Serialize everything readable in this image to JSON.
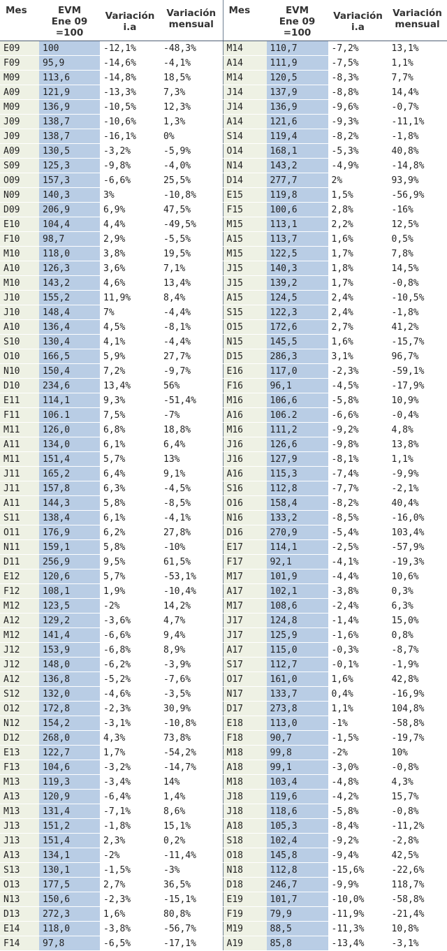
{
  "headers": {
    "mes": "Mes",
    "evm_line1": "EVM",
    "evm_line2": "Ene 09",
    "evm_line3": "=100",
    "ia_line1": "Variación",
    "ia_line2": "i.a",
    "mm_line1": "Variación",
    "mm_line2": "mensual"
  },
  "colors": {
    "mes_column": "#eef1e4",
    "evm_column": "#b9cde5",
    "header_rule": "#4e5e73"
  },
  "left_rows": [
    [
      "E09",
      "100",
      "-12,1%",
      "-48,3%"
    ],
    [
      "F09",
      "95,9",
      "-14,6%",
      "-4,1%"
    ],
    [
      "M09",
      "113,6",
      "-14,8%",
      "18,5%"
    ],
    [
      "A09",
      "121,9",
      "-13,3%",
      "7,3%"
    ],
    [
      "M09",
      "136,9",
      "-10,5%",
      "12,3%"
    ],
    [
      "J09",
      "138,7",
      "-10,6%",
      "1,3%"
    ],
    [
      "J09",
      "138,7",
      "-16,1%",
      "0%"
    ],
    [
      "A09",
      "130,5",
      "-3,2%",
      "-5,9%"
    ],
    [
      "S09",
      "125,3",
      "-9,8%",
      "-4,0%"
    ],
    [
      "O09",
      "157,3",
      "-6,6%",
      "25,5%"
    ],
    [
      "N09",
      "140,3",
      "3%",
      "-10,8%"
    ],
    [
      "D09",
      "206,9",
      "6,9%",
      "47,5%"
    ],
    [
      "E10",
      "104,4",
      "4,4%",
      "-49,5%"
    ],
    [
      "F10",
      "98,7",
      "2,9%",
      "-5,5%"
    ],
    [
      "M10",
      "118,0",
      "3,8%",
      "19,5%"
    ],
    [
      "A10",
      "126,3",
      "3,6%",
      "7,1%"
    ],
    [
      "M10",
      "143,2",
      "4,6%",
      "13,4%"
    ],
    [
      "J10",
      "155,2",
      "11,9%",
      "8,4%"
    ],
    [
      "J10",
      "148,4",
      "7%",
      "-4,4%"
    ],
    [
      "A10",
      "136,4",
      "4,5%",
      "-8,1%"
    ],
    [
      "S10",
      "130,4",
      "4,1%",
      "-4,4%"
    ],
    [
      "O10",
      "166,5",
      "5,9%",
      "27,7%"
    ],
    [
      "N10",
      "150,4",
      "7,2%",
      "-9,7%"
    ],
    [
      "D10",
      "234,6",
      "13,4%",
      "56%"
    ],
    [
      "E11",
      "114,1",
      "9,3%",
      "-51,4%"
    ],
    [
      "F11",
      "106.1",
      "7,5%",
      "-7%"
    ],
    [
      "M11",
      "126,0",
      "6,8%",
      "18,8%"
    ],
    [
      "A11",
      "134,0",
      "6,1%",
      "6,4%"
    ],
    [
      "M11",
      "151,4",
      "5,7%",
      "13%"
    ],
    [
      "J11",
      "165,2",
      "6,4%",
      "9,1%"
    ],
    [
      "J11",
      "157,8",
      "6,3%",
      "-4,5%"
    ],
    [
      "A11",
      "144,3",
      "5,8%",
      "-8,5%"
    ],
    [
      "S11",
      "138,4",
      "6,1%",
      "-4,1%"
    ],
    [
      "O11",
      "176,9",
      "6,2%",
      "27,8%"
    ],
    [
      "N11",
      "159,1",
      "5,8%",
      "-10%"
    ],
    [
      "D11",
      "256,9",
      "9,5%",
      "61,5%"
    ],
    [
      "E12",
      "120,6",
      "5,7%",
      "-53,1%"
    ],
    [
      "F12",
      "108,1",
      "1,9%",
      "-10,4%"
    ],
    [
      "M12",
      "123,5",
      "-2%",
      "14,2%"
    ],
    [
      "A12",
      "129,2",
      "-3,6%",
      "4,7%"
    ],
    [
      "M12",
      "141,4",
      "-6,6%",
      "9,4%"
    ],
    [
      "J12",
      "153,9",
      "-6,8%",
      "8,9%"
    ],
    [
      "J12",
      "148,0",
      "-6,2%",
      "-3,9%"
    ],
    [
      "A12",
      "136,8",
      "-5,2%",
      "-7,6%"
    ],
    [
      "S12",
      "132,0",
      "-4,6%",
      "-3,5%"
    ],
    [
      "O12",
      "172,8",
      "-2,3%",
      "30,9%"
    ],
    [
      "N12",
      "154,2",
      "-3,1%",
      "-10,8%"
    ],
    [
      "D12",
      "268,0",
      "4,3%",
      "73,8%"
    ],
    [
      "E13",
      "122,7",
      "1,7%",
      "-54,2%"
    ],
    [
      "F13",
      "104,6",
      "-3,2%",
      "-14,7%"
    ],
    [
      "M13",
      "119,3",
      "-3,4%",
      "14%"
    ],
    [
      "A13",
      "120,9",
      "-6,4%",
      "1,4%"
    ],
    [
      "M13",
      "131,4",
      "-7,1%",
      "8,6%"
    ],
    [
      "J13",
      "151,2",
      "-1,8%",
      "15,1%"
    ],
    [
      "J13",
      "151,4",
      "2,3%",
      "0,2%"
    ],
    [
      "A13",
      "134,1",
      "-2%",
      "-11,4%"
    ],
    [
      "S13",
      "130,1",
      "-1,5%",
      "-3%"
    ],
    [
      "O13",
      "177,5",
      "2,7%",
      "36,5%"
    ],
    [
      "N13",
      "150,6",
      "-2,3%",
      "-15,1%"
    ],
    [
      "D13",
      "272,3",
      "1,6%",
      "80,8%"
    ],
    [
      "E14",
      "118,0",
      "-3,8%",
      "-56,7%"
    ],
    [
      "F14",
      "97,8",
      "-6,5%",
      "-17,1%"
    ]
  ],
  "right_rows": [
    [
      "M14",
      "110,7",
      "-7,2%",
      "13,1%"
    ],
    [
      "A14",
      "111,9",
      "-7,5%",
      "1,1%"
    ],
    [
      "M14",
      "120,5",
      "-8,3%",
      "7,7%"
    ],
    [
      "J14",
      "137,9",
      "-8,8%",
      "14,4%"
    ],
    [
      "J14",
      "136,9",
      "-9,6%",
      "-0,7%"
    ],
    [
      "A14",
      "121,6",
      "-9,3%",
      "-11,1%"
    ],
    [
      "S14",
      "119,4",
      "-8,2%",
      "-1,8%"
    ],
    [
      "O14",
      "168,1",
      "-5,3%",
      "40,8%"
    ],
    [
      "N14",
      "143,2",
      "-4,9%",
      "-14,8%"
    ],
    [
      "D14",
      "277,7",
      "2%",
      "93,9%"
    ],
    [
      "E15",
      "119,8",
      "1,5%",
      "-56,9%"
    ],
    [
      "F15",
      "100,6",
      "2,8%",
      "-16%"
    ],
    [
      "M15",
      "113,1",
      "2,2%",
      "12,5%"
    ],
    [
      "A15",
      "113,7",
      "1,6%",
      "0,5%"
    ],
    [
      "M15",
      "122,5",
      "1,7%",
      "7,8%"
    ],
    [
      "J15",
      "140,3",
      "1,8%",
      "14,5%"
    ],
    [
      "J15",
      "139,2",
      "1,7%",
      "-0,8%"
    ],
    [
      "A15",
      "124,5",
      "2,4%",
      "-10,5%"
    ],
    [
      "S15",
      "122,3",
      "2,4%",
      "-1,8%"
    ],
    [
      "O15",
      "172,6",
      "2,7%",
      "41,2%"
    ],
    [
      "N15",
      "145,5",
      "1,6%",
      "-15,7%"
    ],
    [
      "D15",
      "286,3",
      "3,1%",
      "96,7%"
    ],
    [
      "E16",
      "117,0",
      "-2,3%",
      "-59,1%"
    ],
    [
      "F16",
      "96,1",
      "-4,5%",
      "-17,9%"
    ],
    [
      "M16",
      "106,6",
      "-5,8%",
      "10,9%"
    ],
    [
      "A16",
      "106.2",
      "-6,6%",
      "-0,4%"
    ],
    [
      "M16",
      "111,2",
      "-9,2%",
      "4,8%"
    ],
    [
      "J16",
      "126,6",
      "-9,8%",
      "13,8%"
    ],
    [
      "J16",
      "127,9",
      "-8,1%",
      "1,1%"
    ],
    [
      "A16",
      "115,3",
      "-7,4%",
      "-9,9%"
    ],
    [
      "S16",
      "112,8",
      "-7,7%",
      "-2,1%"
    ],
    [
      "O16",
      "158,4",
      "-8,2%",
      "40,4%"
    ],
    [
      "N16",
      "133,2",
      "-8,5%",
      "-16,0%"
    ],
    [
      "D16",
      "270,9",
      "-5,4%",
      "103,4%"
    ],
    [
      "E17",
      "114,1",
      "-2,5%",
      "-57,9%"
    ],
    [
      "F17",
      "92,1",
      "-4,1%",
      "-19,3%"
    ],
    [
      "M17",
      "101,9",
      "-4,4%",
      "10,6%"
    ],
    [
      "A17",
      "102,1",
      "-3,8%",
      "0,3%"
    ],
    [
      "M17",
      "108,6",
      "-2,4%",
      "6,3%"
    ],
    [
      "J17",
      "124,8",
      "-1,4%",
      "15,0%"
    ],
    [
      "J17",
      "125,9",
      "-1,6%",
      "0,8%"
    ],
    [
      "A17",
      "115,0",
      "-0,3%",
      "-8,7%"
    ],
    [
      "S17",
      "112,7",
      "-0,1%",
      "-1,9%"
    ],
    [
      "O17",
      "161,0",
      "1,6%",
      "42,8%"
    ],
    [
      "N17",
      "133,7",
      "0,4%",
      "-16,9%"
    ],
    [
      "D17",
      "273,8",
      "1,1%",
      "104,8%"
    ],
    [
      "E18",
      "113,0",
      "-1%",
      "-58,8%"
    ],
    [
      "F18",
      "90,7",
      "-1,5%",
      "-19,7%"
    ],
    [
      "M18",
      "99,8",
      "-2%",
      "10%"
    ],
    [
      "A18",
      "99,1",
      "-3,0%",
      "-0,8%"
    ],
    [
      "M18",
      "103,4",
      "-4,8%",
      "4,3%"
    ],
    [
      "J18",
      "119,6",
      "-4,2%",
      "15,7%"
    ],
    [
      "J18",
      "118,6",
      "-5,8%",
      "-0,8%"
    ],
    [
      "A18",
      "105,3",
      "-8,4%",
      "-11,2%"
    ],
    [
      "S18",
      "102,4",
      "-9,2%",
      "-2,8%"
    ],
    [
      "O18",
      "145,8",
      "-9,4%",
      "42,5%"
    ],
    [
      "N18",
      "112,8",
      "-15,6%",
      "-22,6%"
    ],
    [
      "D18",
      "246,7",
      "-9,9%",
      "118,7%"
    ],
    [
      "E19",
      "101,7",
      "-10,0%",
      "-58,8%"
    ],
    [
      "F19",
      "79,9",
      "-11,9%",
      "-21,4%"
    ],
    [
      "M19",
      "88,5",
      "-11,3%",
      "10,8%"
    ],
    [
      "A19",
      "85,8",
      "-13,4%",
      "-3,1%"
    ]
  ]
}
